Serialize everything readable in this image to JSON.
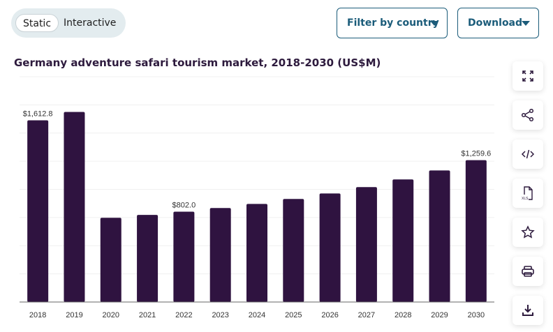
{
  "view_toggle": {
    "static": "Static",
    "interactive": "Interactive",
    "selected": "Static"
  },
  "filter_button": "Filter by country",
  "download_button": "Download",
  "side_tools": [
    {
      "icon": "expand-icon"
    },
    {
      "icon": "share-icon"
    },
    {
      "icon": "embed-code-icon"
    },
    {
      "icon": "xls-file-icon",
      "label": "XLS"
    },
    {
      "icon": "star-icon"
    },
    {
      "icon": "print-icon"
    },
    {
      "icon": "download-icon"
    }
  ],
  "colors": {
    "bar": "#2f1340",
    "accent": "#1b5c7a"
  },
  "chart_data": {
    "type": "bar",
    "title": "Germany adventure safari tourism market, 2018-2030 (US$M)",
    "categories": [
      "2018",
      "2019",
      "2020",
      "2021",
      "2022",
      "2023",
      "2024",
      "2025",
      "2026",
      "2027",
      "2028",
      "2029",
      "2030"
    ],
    "values": [
      1612.8,
      1687,
      748,
      773,
      802.0,
      834,
      871,
      915,
      964,
      1020,
      1088,
      1168,
      1259.6
    ],
    "data_labels": {
      "2018": "$1,612.8",
      "2022": "$802.0",
      "2030": "$1,259.6"
    },
    "ylim": [
      0,
      2000
    ],
    "grid": true,
    "grid_step": 250
  }
}
